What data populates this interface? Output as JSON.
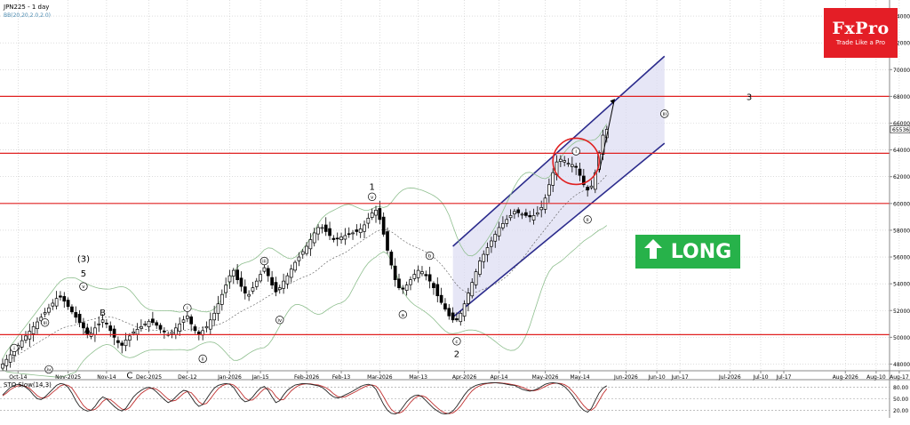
{
  "header": {
    "symbol_label": "JPN225 - 1 day",
    "indicator_label": "BB(20,20,2.0,2.0)"
  },
  "logo": {
    "brand": "FxPro",
    "tagline": "Trade Like a Pro",
    "color": "#e41e26"
  },
  "signal": {
    "label": "LONG",
    "icon": "arrow-up-icon",
    "color": "#27b24a"
  },
  "chart_data": {
    "type": "candlestick",
    "ylim": [
      47500,
      75200
    ],
    "y_ticks": [
      48000,
      50000,
      52000,
      54000,
      56000,
      58000,
      60000,
      62000,
      64000,
      66000,
      68000,
      70000,
      72000,
      74000
    ],
    "last_price": "65536",
    "x_ticks": [
      {
        "label": "Oct-14",
        "i": 4
      },
      {
        "label": "Nov-2025",
        "i": 17
      },
      {
        "label": "Nov-14",
        "i": 27
      },
      {
        "label": "Dec-2025",
        "i": 38
      },
      {
        "label": "Dec-12",
        "i": 48
      },
      {
        "label": "Jan-2026",
        "i": 59
      },
      {
        "label": "Jan-15",
        "i": 67
      },
      {
        "label": "Feb-2026",
        "i": 79
      },
      {
        "label": "Feb-13",
        "i": 88
      },
      {
        "label": "Mar-2026",
        "i": 98
      },
      {
        "label": "Mar-13",
        "i": 108
      },
      {
        "label": "Apr-2026",
        "i": 120
      },
      {
        "label": "Apr-14",
        "i": 129
      },
      {
        "label": "May-2026",
        "i": 141
      },
      {
        "label": "May-14",
        "i": 150
      },
      {
        "label": "Jun-2026",
        "i": 162
      },
      {
        "label": "Jun-10",
        "i": 170
      },
      {
        "label": "Jun-17",
        "i": 176
      },
      {
        "label": "Jul-2026",
        "i": 189
      },
      {
        "label": "Jul-10",
        "i": 197
      },
      {
        "label": "Jul-17",
        "i": 203
      },
      {
        "label": "Aug-2026",
        "i": 219
      },
      {
        "label": "Aug-10",
        "i": 227
      },
      {
        "label": "Aug-17",
        "i": 233
      }
    ],
    "horizontal_levels": [
      68000,
      63750,
      60000,
      50200
    ],
    "channel": {
      "lower": [
        {
          "i": 117,
          "y": 51500
        },
        {
          "i": 172,
          "y": 64500
        }
      ],
      "upper": [
        {
          "i": 117,
          "y": 56800
        },
        {
          "i": 172,
          "y": 71000
        }
      ],
      "fill_until": 172
    },
    "projection": [
      {
        "i": 155,
        "y": 62300
      },
      {
        "i": 159,
        "y": 67800
      }
    ],
    "highlight_circle": {
      "i": 149,
      "y": 63150
    },
    "wave_labels": [
      {
        "text": "i",
        "i": 3,
        "y": 49200,
        "circled": true,
        "below": false
      },
      {
        "text": "iii",
        "i": 11,
        "y": 51100,
        "circled": true,
        "below": false
      },
      {
        "text": "iv",
        "i": 12,
        "y": 47600,
        "circled": true,
        "below": true
      },
      {
        "text": "A",
        "i": 22,
        "y": 50600,
        "circled": false,
        "below": true
      },
      {
        "text": "(3)",
        "i": 21,
        "y": 55900,
        "circled": false,
        "below": false
      },
      {
        "text": "5",
        "i": 21,
        "y": 54800,
        "circled": false,
        "below": false
      },
      {
        "text": "v",
        "i": 21,
        "y": 53800,
        "circled": true,
        "below": false
      },
      {
        "text": "B",
        "i": 26,
        "y": 51900,
        "circled": false,
        "below": false
      },
      {
        "text": "C",
        "i": 33,
        "y": 47200,
        "circled": false,
        "below": true
      },
      {
        "text": "i",
        "i": 48,
        "y": 52200,
        "circled": true,
        "below": false
      },
      {
        "text": "ii",
        "i": 52,
        "y": 48400,
        "circled": true,
        "below": true
      },
      {
        "text": "iii",
        "i": 68,
        "y": 55700,
        "circled": true,
        "below": false
      },
      {
        "text": "iv",
        "i": 72,
        "y": 51300,
        "circled": true,
        "below": true
      },
      {
        "text": "1",
        "i": 96,
        "y": 61300,
        "circled": false,
        "below": false
      },
      {
        "text": "v",
        "i": 96,
        "y": 60500,
        "circled": true,
        "below": false
      },
      {
        "text": "a",
        "i": 104,
        "y": 51700,
        "circled": true,
        "below": true
      },
      {
        "text": "b",
        "i": 111,
        "y": 56100,
        "circled": true,
        "below": false
      },
      {
        "text": "c",
        "i": 118,
        "y": 49700,
        "circled": true,
        "below": true
      },
      {
        "text": "2",
        "i": 118,
        "y": 48800,
        "circled": false,
        "below": true
      },
      {
        "text": "i",
        "i": 149,
        "y": 63900,
        "circled": true,
        "below": false
      },
      {
        "text": "ii",
        "i": 152,
        "y": 58800,
        "circled": true,
        "below": true
      },
      {
        "text": "iii",
        "i": 172,
        "y": 66700,
        "circled": true,
        "below": false
      },
      {
        "text": "3",
        "i": 194,
        "y": 68000,
        "circled": false,
        "below": false
      }
    ],
    "closes": [
      48000,
      48350,
      48700,
      49050,
      49400,
      49750,
      50100,
      50450,
      50800,
      51150,
      51500,
      51850,
      52200,
      52550,
      52900,
      53000,
      52700,
      52300,
      51900,
      51500,
      51100,
      50700,
      50200,
      50300,
      50700,
      51000,
      51300,
      51000,
      50500,
      50000,
      49600,
      49400,
      49800,
      50100,
      50400,
      50600,
      50800,
      51000,
      51200,
      51100,
      50900,
      50600,
      50400,
      50200,
      50400,
      50700,
      51000,
      51300,
      51600,
      51000,
      50500,
      50200,
      50500,
      50800,
      51300,
      51800,
      52500,
      53200,
      53900,
      54600,
      55000,
      54300,
      53800,
      53300,
      53200,
      53700,
      54200,
      54700,
      55200,
      54600,
      53900,
      53400,
      53700,
      54200,
      54600,
      55100,
      55600,
      56000,
      56400,
      56800,
      57300,
      57800,
      58200,
      58200,
      57900,
      57600,
      57300,
      57400,
      57500,
      57600,
      57700,
      57800,
      57900,
      58100,
      58400,
      58900,
      59300,
      59500,
      58800,
      57700,
      56500,
      55400,
      54300,
      53700,
      53600,
      53900,
      54300,
      54700,
      55000,
      54900,
      54600,
      54200,
      53700,
      53100,
      52600,
      52100,
      51600,
      51300,
      51300,
      51800,
      52500,
      53300,
      54100,
      54900,
      55700,
      56200,
      56700,
      57200,
      57700,
      58200,
      58500,
      58800,
      59100,
      59400,
      59300,
      59200,
      59100,
      59000,
      59100,
      59300,
      59700,
      60400,
      61400,
      62300,
      63100,
      63300,
      63200,
      63000,
      62900,
      62700,
      62100,
      61400,
      61000,
      61300,
      62300,
      63800,
      65100,
      65536
    ],
    "stoch": {
      "name": "STO Slow(14,3)",
      "range": [
        0,
        100
      ],
      "levels": [
        80,
        50,
        20
      ],
      "k_values": [
        60,
        70,
        80,
        85,
        88,
        85,
        80,
        72,
        60,
        50,
        48,
        55,
        65,
        75,
        85,
        90,
        88,
        80,
        65,
        45,
        30,
        22,
        18,
        20,
        30,
        45,
        55,
        50,
        40,
        30,
        22,
        18,
        25,
        40,
        55,
        65,
        72,
        78,
        80,
        76,
        68,
        58,
        48,
        40,
        45,
        55,
        65,
        72,
        70,
        55,
        40,
        30,
        35,
        50,
        65,
        78,
        85,
        88,
        90,
        88,
        80,
        65,
        50,
        42,
        45,
        55,
        68,
        78,
        82,
        72,
        55,
        40,
        45,
        60,
        72,
        80,
        86,
        88,
        90,
        89,
        88,
        86,
        84,
        80,
        72,
        62,
        55,
        52,
        55,
        60,
        65,
        70,
        76,
        82,
        86,
        88,
        85,
        75,
        55,
        35,
        20,
        12,
        10,
        15,
        28,
        42,
        52,
        58,
        60,
        55,
        45,
        35,
        25,
        18,
        12,
        10,
        12,
        18,
        30,
        45,
        60,
        72,
        80,
        85,
        88,
        90,
        91,
        92,
        92,
        91,
        90,
        88,
        86,
        85,
        80,
        75,
        72,
        70,
        72,
        76,
        82,
        88,
        91,
        92,
        91,
        88,
        82,
        72,
        60,
        45,
        30,
        20,
        15,
        25,
        45,
        65,
        78,
        84
      ],
      "d_values": [
        58,
        65,
        74,
        80,
        84,
        85,
        82,
        77,
        68,
        58,
        52,
        52,
        58,
        67,
        75,
        84,
        87,
        85,
        78,
        63,
        47,
        32,
        23,
        20,
        22,
        31,
        43,
        50,
        48,
        40,
        31,
        23,
        21,
        27,
        40,
        53,
        64,
        71,
        77,
        78,
        75,
        68,
        58,
        49,
        44,
        46,
        55,
        64,
        69,
        66,
        55,
        42,
        35,
        38,
        50,
        64,
        76,
        84,
        88,
        89,
        86,
        78,
        65,
        52,
        46,
        47,
        56,
        67,
        76,
        77,
        70,
        56,
        47,
        48,
        59,
        71,
        79,
        85,
        88,
        89,
        89,
        87,
        86,
        83,
        79,
        72,
        63,
        56,
        54,
        55,
        60,
        65,
        70,
        76,
        81,
        85,
        86,
        83,
        72,
        55,
        37,
        22,
        14,
        12,
        17,
        28,
        41,
        51,
        57,
        58,
        54,
        45,
        35,
        26,
        18,
        13,
        11,
        13,
        20,
        31,
        45,
        59,
        71,
        79,
        84,
        88,
        90,
        91,
        92,
        92,
        91,
        90,
        88,
        86,
        84,
        80,
        76,
        72,
        71,
        73,
        77,
        82,
        87,
        90,
        91,
        90,
        87,
        81,
        71,
        59,
        45,
        32,
        22,
        20,
        28,
        45,
        63,
        76
      ]
    }
  }
}
